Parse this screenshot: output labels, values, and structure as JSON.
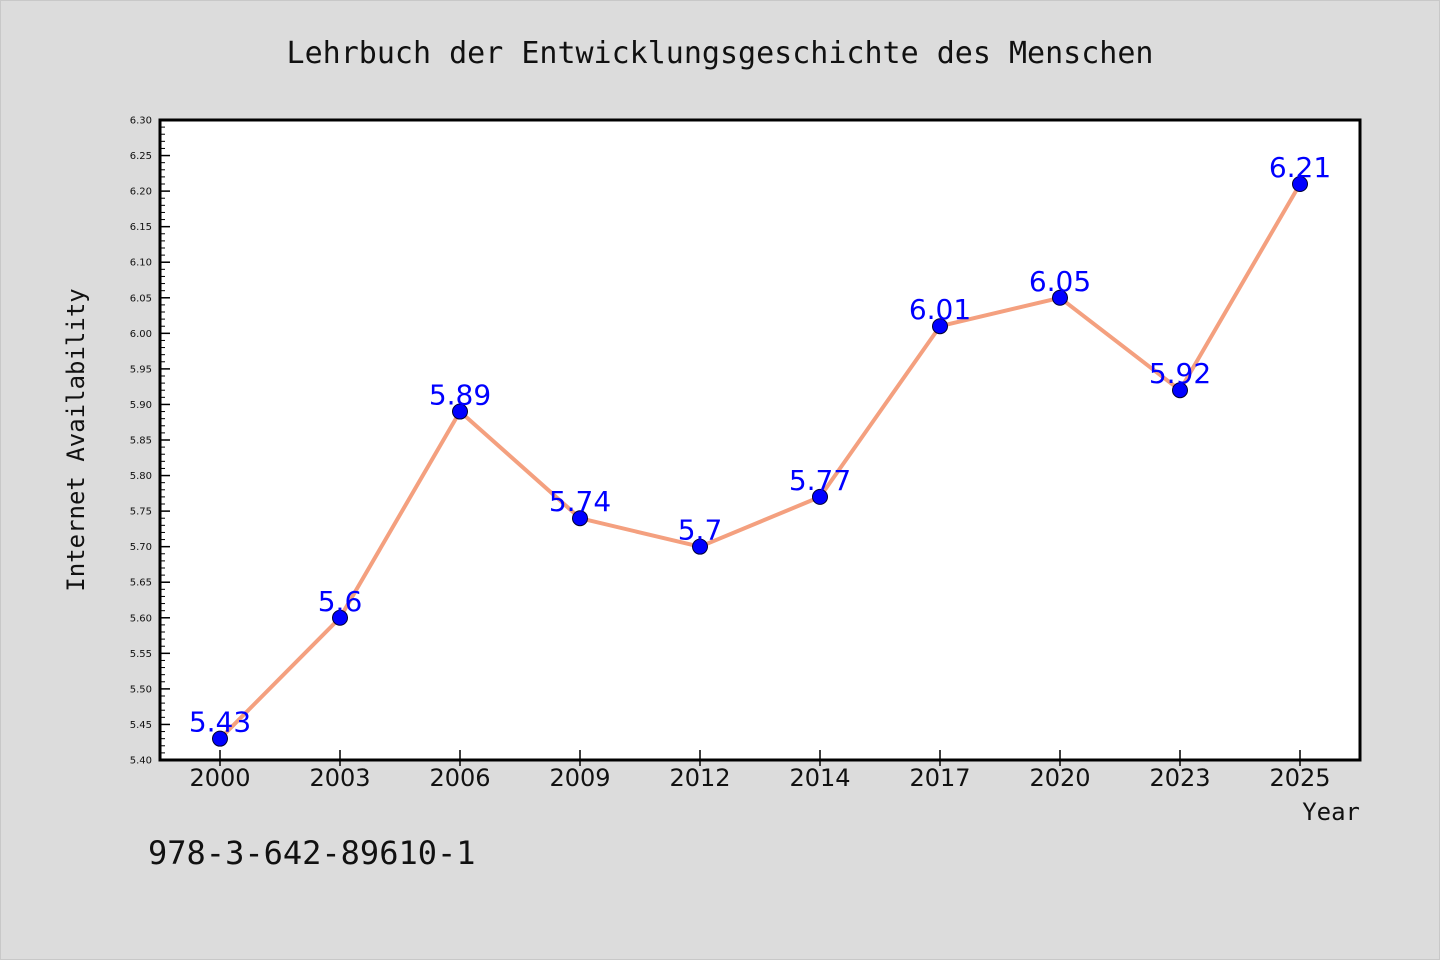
{
  "chart_data": {
    "type": "line",
    "title": "Lehrbuch der Entwicklungsgeschichte des Menschen",
    "xlabel": "Year",
    "ylabel": "Internet Availability",
    "categories": [
      "2000",
      "2003",
      "2006",
      "2009",
      "2012",
      "2014",
      "2017",
      "2020",
      "2023",
      "2025"
    ],
    "series": [
      {
        "values": [
          5.43,
          5.6,
          5.89,
          5.74,
          5.7,
          5.77,
          6.01,
          6.05,
          5.92,
          6.21
        ],
        "data_labels": [
          "5.43",
          "5.6",
          "5.89",
          "5.74",
          "5.7",
          "5.77",
          "6.01",
          "6.05",
          "5.92",
          "6.21"
        ]
      }
    ],
    "ylim": [
      5.4,
      6.3
    ],
    "yticks": [
      "5.40",
      "5.45",
      "5.50",
      "5.55",
      "5.60",
      "5.65",
      "5.70",
      "5.75",
      "5.80",
      "5.85",
      "5.90",
      "5.95",
      "6.00",
      "6.05",
      "6.10",
      "6.15",
      "6.20",
      "6.25",
      "6.30"
    ],
    "grid": false,
    "legend": "none",
    "colors": {
      "line": "#f4a07f",
      "marker": "#0000ff",
      "data_label": "#0000ff",
      "plot_background": "#ffffff",
      "figure_background": "#dcdcdc"
    }
  },
  "footer": {
    "code": "978-3-642-89610-1"
  }
}
